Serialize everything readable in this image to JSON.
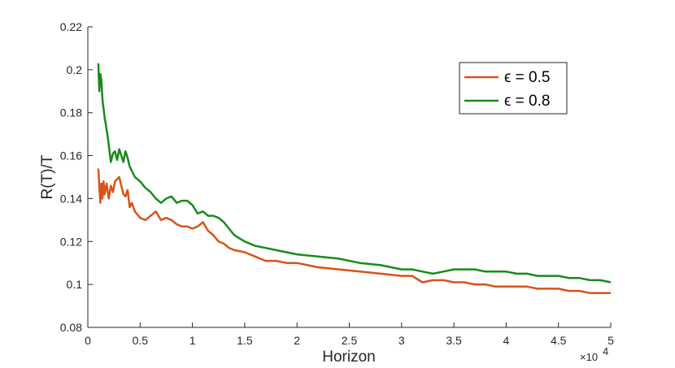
{
  "chart_data": {
    "type": "line",
    "xlabel": "Horizon",
    "ylabel": "R(T)/T",
    "x_exponent_label": "×10",
    "x_exponent_power": "4",
    "xlim": [
      0,
      5
    ],
    "ylim": [
      0.08,
      0.22
    ],
    "xticks": [
      "0",
      "0.5",
      "1",
      "1.5",
      "2",
      "2.5",
      "3",
      "3.5",
      "4",
      "4.5",
      "5"
    ],
    "yticks": [
      "0.08",
      "0.1",
      "0.12",
      "0.14",
      "0.16",
      "0.18",
      "0.2",
      "0.22"
    ],
    "grid": false,
    "legend_position": "top-right",
    "series": [
      {
        "name": "ϵ = 0.5",
        "color": "#d95319",
        "x": [
          0.1,
          0.11,
          0.12,
          0.13,
          0.14,
          0.15,
          0.16,
          0.18,
          0.2,
          0.22,
          0.24,
          0.26,
          0.28,
          0.3,
          0.32,
          0.34,
          0.36,
          0.38,
          0.4,
          0.42,
          0.45,
          0.5,
          0.55,
          0.6,
          0.65,
          0.7,
          0.75,
          0.8,
          0.85,
          0.9,
          0.95,
          1.0,
          1.05,
          1.1,
          1.15,
          1.2,
          1.25,
          1.3,
          1.35,
          1.4,
          1.5,
          1.6,
          1.7,
          1.8,
          1.9,
          2.0,
          2.2,
          2.4,
          2.6,
          2.8,
          3.0,
          3.1,
          3.2,
          3.3,
          3.4,
          3.5,
          3.6,
          3.7,
          3.8,
          3.9,
          4.0,
          4.1,
          4.2,
          4.3,
          4.4,
          4.5,
          4.6,
          4.7,
          4.8,
          4.9,
          5.0
        ],
        "values": [
          0.154,
          0.146,
          0.138,
          0.147,
          0.14,
          0.148,
          0.142,
          0.147,
          0.14,
          0.146,
          0.143,
          0.148,
          0.149,
          0.15,
          0.146,
          0.142,
          0.141,
          0.144,
          0.136,
          0.138,
          0.134,
          0.131,
          0.13,
          0.132,
          0.134,
          0.13,
          0.131,
          0.13,
          0.128,
          0.127,
          0.127,
          0.126,
          0.127,
          0.129,
          0.125,
          0.123,
          0.12,
          0.119,
          0.117,
          0.116,
          0.115,
          0.113,
          0.111,
          0.111,
          0.11,
          0.11,
          0.108,
          0.107,
          0.106,
          0.105,
          0.104,
          0.104,
          0.101,
          0.102,
          0.102,
          0.101,
          0.101,
          0.1,
          0.1,
          0.099,
          0.099,
          0.099,
          0.099,
          0.098,
          0.098,
          0.098,
          0.097,
          0.097,
          0.096,
          0.096,
          0.096
        ]
      },
      {
        "name": "ϵ = 0.8",
        "color": "#1a8a1a",
        "x": [
          0.1,
          0.11,
          0.12,
          0.13,
          0.14,
          0.15,
          0.16,
          0.17,
          0.18,
          0.19,
          0.2,
          0.22,
          0.24,
          0.26,
          0.28,
          0.3,
          0.32,
          0.34,
          0.36,
          0.38,
          0.4,
          0.45,
          0.5,
          0.55,
          0.6,
          0.65,
          0.7,
          0.75,
          0.8,
          0.85,
          0.9,
          0.95,
          1.0,
          1.05,
          1.1,
          1.15,
          1.2,
          1.25,
          1.3,
          1.35,
          1.4,
          1.5,
          1.6,
          1.7,
          1.8,
          1.9,
          2.0,
          2.2,
          2.4,
          2.6,
          2.8,
          3.0,
          3.1,
          3.2,
          3.3,
          3.4,
          3.5,
          3.6,
          3.7,
          3.8,
          3.9,
          4.0,
          4.1,
          4.2,
          4.3,
          4.4,
          4.5,
          4.6,
          4.7,
          4.8,
          4.9,
          5.0
        ],
        "values": [
          0.203,
          0.19,
          0.198,
          0.195,
          0.186,
          0.182,
          0.178,
          0.175,
          0.172,
          0.169,
          0.165,
          0.157,
          0.161,
          0.162,
          0.158,
          0.163,
          0.16,
          0.157,
          0.162,
          0.159,
          0.155,
          0.15,
          0.148,
          0.145,
          0.143,
          0.14,
          0.138,
          0.14,
          0.141,
          0.138,
          0.139,
          0.139,
          0.137,
          0.133,
          0.134,
          0.132,
          0.132,
          0.131,
          0.129,
          0.126,
          0.123,
          0.12,
          0.118,
          0.117,
          0.116,
          0.115,
          0.114,
          0.113,
          0.112,
          0.11,
          0.109,
          0.107,
          0.107,
          0.106,
          0.105,
          0.106,
          0.107,
          0.107,
          0.107,
          0.106,
          0.106,
          0.106,
          0.105,
          0.105,
          0.104,
          0.104,
          0.104,
          0.103,
          0.103,
          0.102,
          0.102,
          0.101
        ]
      }
    ]
  }
}
